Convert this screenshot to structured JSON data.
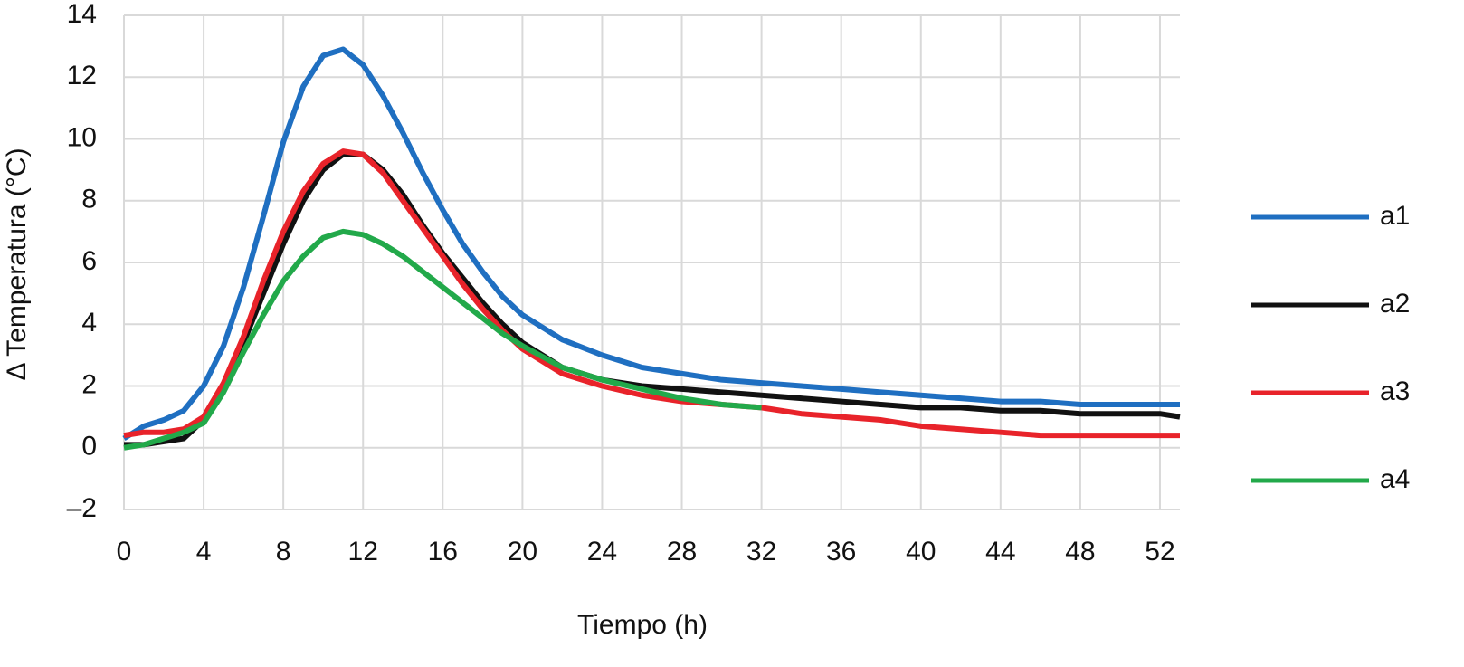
{
  "chart_data": {
    "type": "line",
    "xlabel": "Tiempo (h)",
    "ylabel": "Δ Temperatura (°C)",
    "x": [
      0,
      1,
      2,
      3,
      4,
      5,
      6,
      7,
      8,
      9,
      10,
      11,
      12,
      13,
      14,
      15,
      16,
      17,
      18,
      19,
      20,
      22,
      24,
      26,
      28,
      30,
      32,
      34,
      36,
      38,
      40,
      42,
      44,
      46,
      48,
      50,
      52,
      53
    ],
    "series": [
      {
        "name": "a1",
        "color": "#1f6fc1",
        "values": [
          0.3,
          0.7,
          0.9,
          1.2,
          2,
          3.3,
          5.2,
          7.5,
          9.9,
          11.7,
          12.7,
          12.9,
          12.4,
          11.4,
          10.2,
          8.9,
          7.7,
          6.6,
          5.7,
          4.9,
          4.3,
          3.5,
          3,
          2.6,
          2.4,
          2.2,
          2.1,
          2,
          1.9,
          1.8,
          1.7,
          1.6,
          1.5,
          1.5,
          1.4,
          1.4,
          1.4,
          1.4
        ]
      },
      {
        "name": "a2",
        "color": "#111111",
        "values": [
          0.1,
          0.1,
          0.2,
          0.3,
          0.9,
          2,
          3.4,
          5,
          6.6,
          8,
          9,
          9.5,
          9.5,
          9,
          8.2,
          7.2,
          6.3,
          5.5,
          4.7,
          4,
          3.4,
          2.6,
          2.2,
          2,
          1.9,
          1.8,
          1.7,
          1.6,
          1.5,
          1.4,
          1.3,
          1.3,
          1.2,
          1.2,
          1.1,
          1.1,
          1.1,
          1
        ]
      },
      {
        "name": "a3",
        "color": "#e8232a",
        "values": [
          0.4,
          0.5,
          0.5,
          0.6,
          1,
          2.1,
          3.6,
          5.4,
          7,
          8.3,
          9.2,
          9.6,
          9.5,
          8.9,
          8,
          7.1,
          6.2,
          5.3,
          4.5,
          3.8,
          3.2,
          2.4,
          2,
          1.7,
          1.5,
          1.4,
          1.3,
          1.1,
          1,
          0.9,
          0.7,
          0.6,
          0.5,
          0.4,
          0.4,
          0.4,
          0.4,
          0.4
        ]
      },
      {
        "name": "a4",
        "color": "#22a94a",
        "values": [
          0,
          0.1,
          0.3,
          0.5,
          0.8,
          1.8,
          3.1,
          4.3,
          5.4,
          6.2,
          6.8,
          7,
          6.9,
          6.6,
          6.2,
          5.7,
          5.2,
          4.7,
          4.2,
          3.7,
          3.3,
          2.6,
          2.2,
          1.9,
          1.6,
          1.4,
          1.3,
          null,
          null,
          null,
          null,
          null,
          null,
          null,
          null,
          null,
          null,
          null
        ]
      }
    ],
    "xlim": [
      0,
      53
    ],
    "xticks": [
      0,
      4,
      8,
      12,
      16,
      20,
      24,
      28,
      32,
      36,
      40,
      44,
      48,
      52
    ],
    "ylim": [
      -2,
      14
    ],
    "yticks": [
      {
        "value": -2,
        "label": "–2"
      },
      0,
      2,
      4,
      6,
      8,
      10,
      12,
      14
    ],
    "grid": true,
    "legend": "right"
  }
}
